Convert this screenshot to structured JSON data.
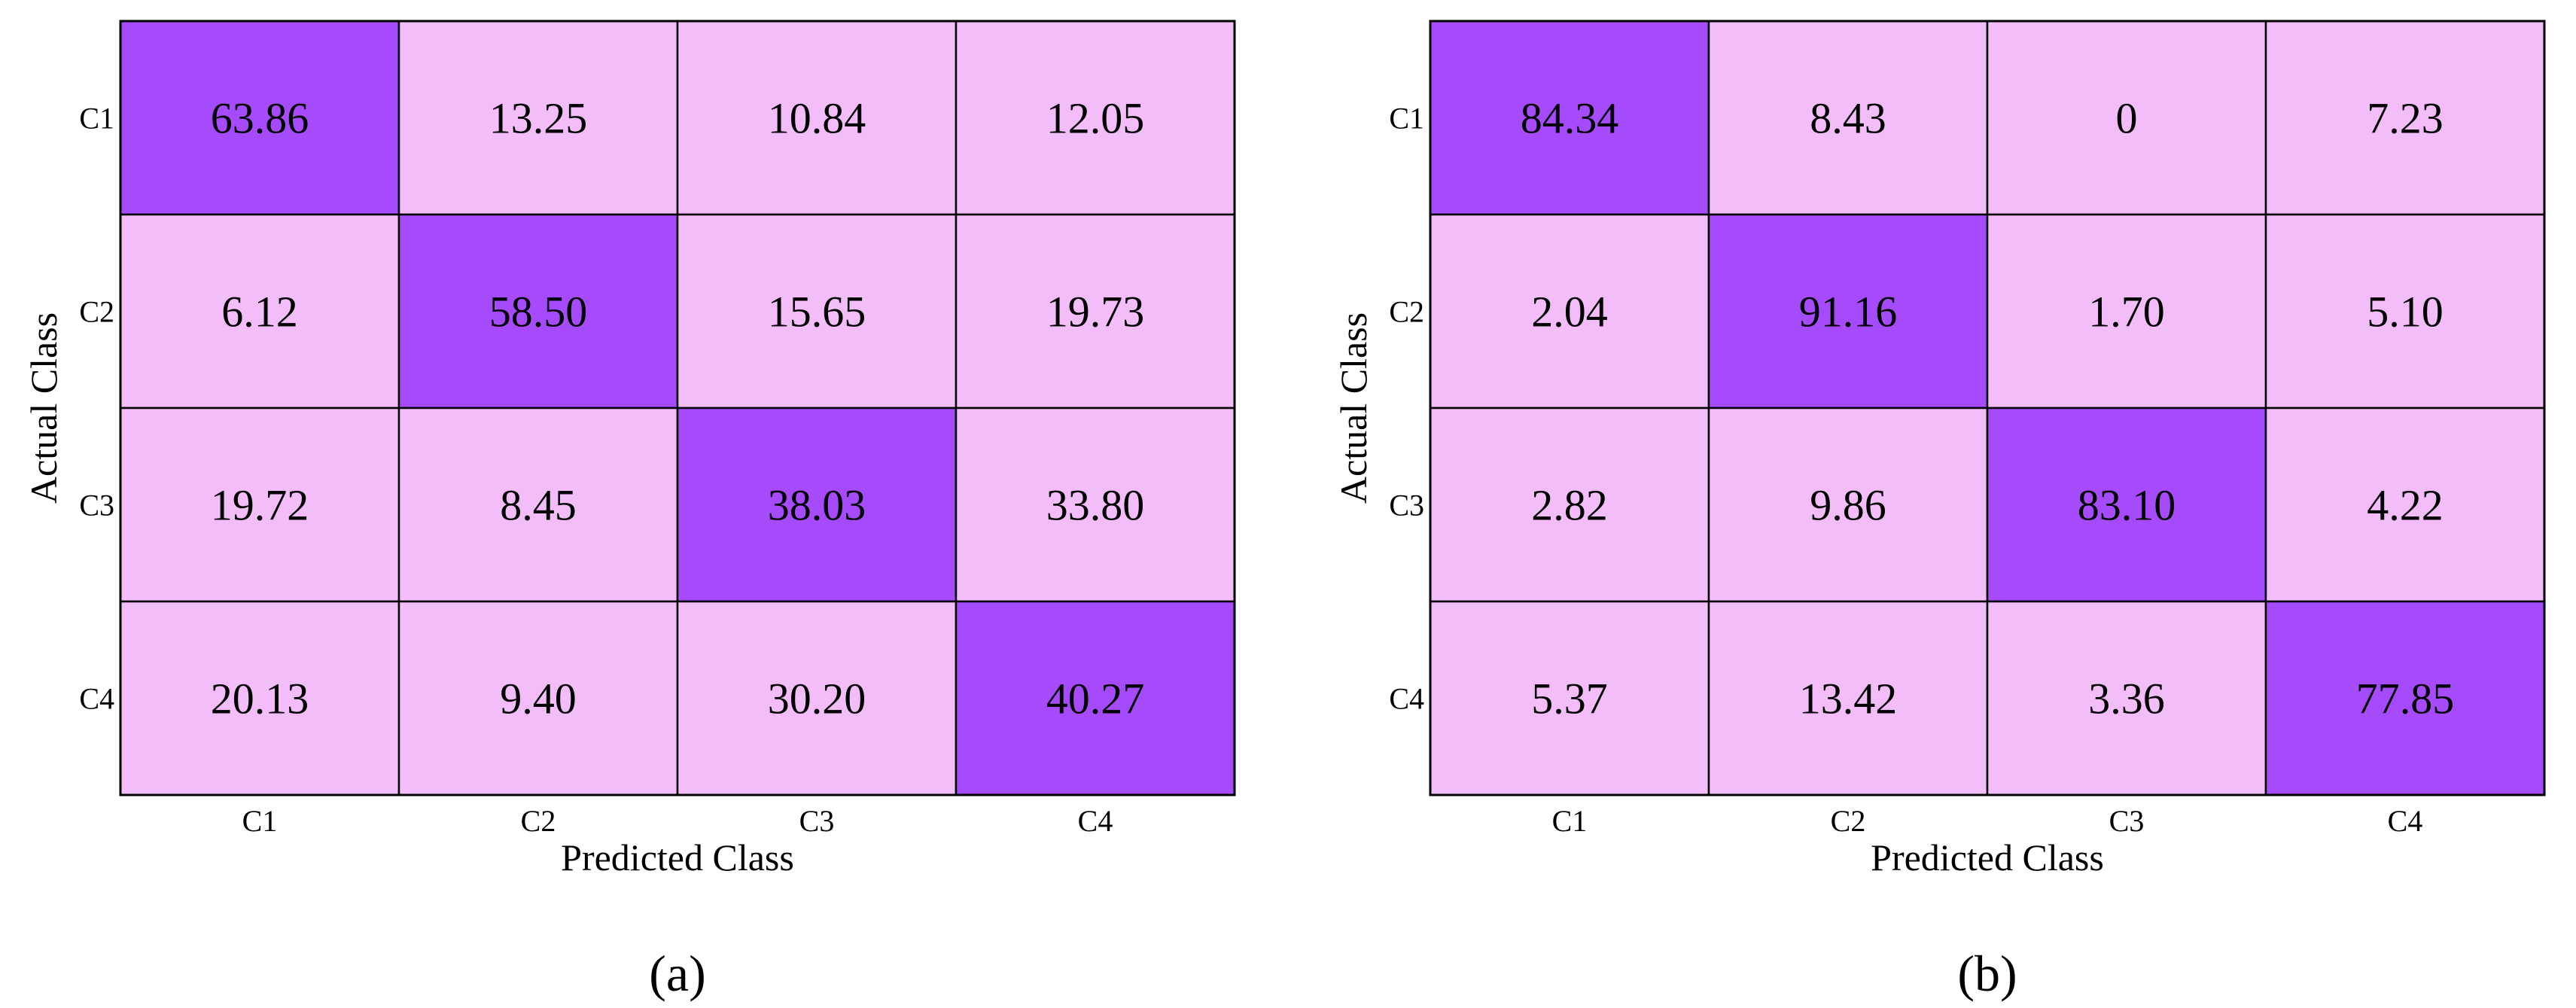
{
  "colors": {
    "diagonal": "#a64bfc",
    "off_diagonal": "#f3bdf9",
    "grid": "#000000"
  },
  "chart_data": [
    {
      "type": "heatmap",
      "panel_label": "(a)",
      "row_labels": [
        "C1",
        "C2",
        "C3",
        "C4"
      ],
      "col_labels": [
        "C1",
        "C2",
        "C3",
        "C4"
      ],
      "xlabel": "Predicted Class",
      "ylabel": "Actual Class",
      "values": [
        [
          "63.86",
          "13.25",
          "10.84",
          "12.05"
        ],
        [
          "6.12",
          "58.50",
          "15.65",
          "19.73"
        ],
        [
          "19.72",
          "8.45",
          "38.03",
          "33.80"
        ],
        [
          "20.13",
          "9.40",
          "30.20",
          "40.27"
        ]
      ],
      "grid": true,
      "legend": "none"
    },
    {
      "type": "heatmap",
      "panel_label": "(b)",
      "row_labels": [
        "C1",
        "C2",
        "C3",
        "C4"
      ],
      "col_labels": [
        "C1",
        "C2",
        "C3",
        "C4"
      ],
      "xlabel": "Predicted Class",
      "ylabel": "Actual Class",
      "values": [
        [
          "84.34",
          "8.43",
          "0",
          "7.23"
        ],
        [
          "2.04",
          "91.16",
          "1.70",
          "5.10"
        ],
        [
          "2.82",
          "9.86",
          "83.10",
          "4.22"
        ],
        [
          "5.37",
          "13.42",
          "3.36",
          "77.85"
        ]
      ],
      "grid": true,
      "legend": "none"
    }
  ]
}
